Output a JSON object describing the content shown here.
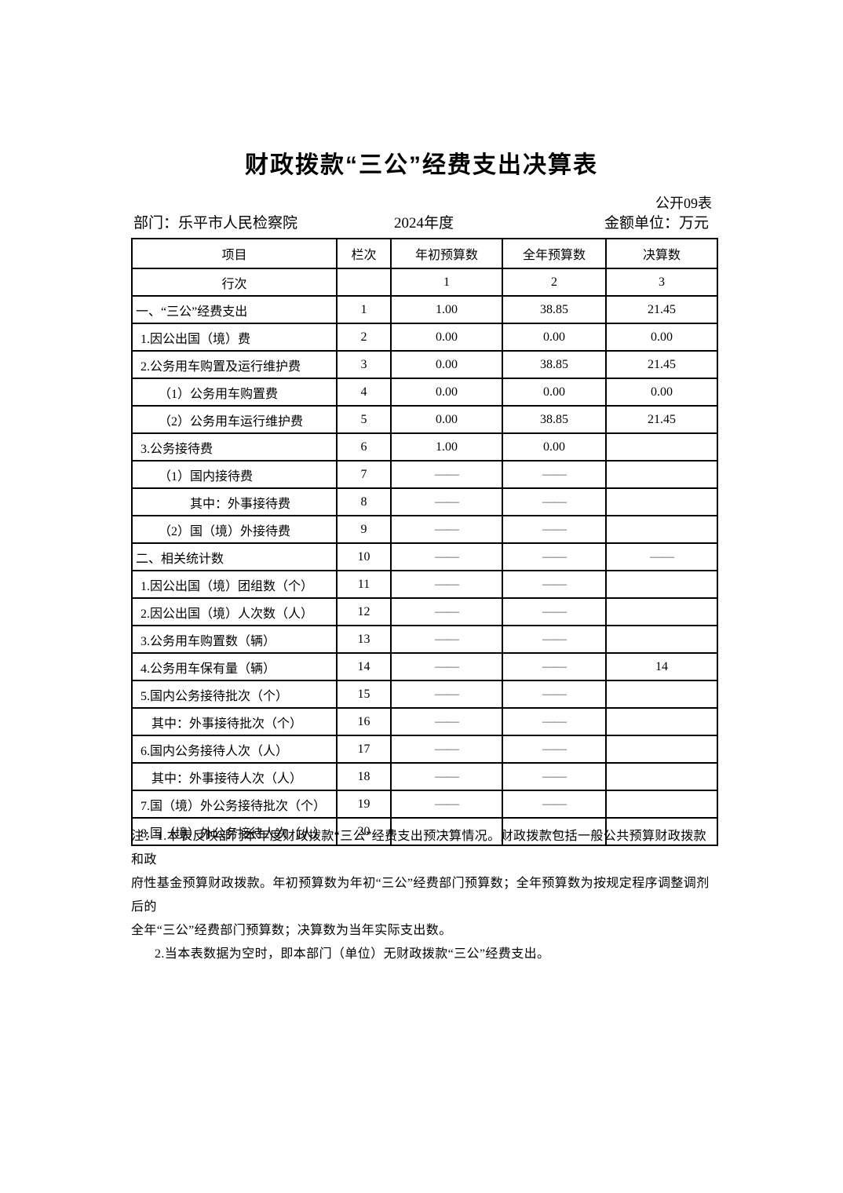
{
  "page": {
    "title": "财政拨款“三公”经费支出决算表",
    "form_code": "公开09表",
    "department": "部门：乐平市人民检察院",
    "year": "2024年度",
    "unit": "金额单位：万元"
  },
  "table": {
    "headers": [
      "项目",
      "栏次",
      "年初预算数",
      "全年预算数",
      "决算数"
    ],
    "subheader": {
      "label": "行次",
      "lan": "",
      "c1": "1",
      "c2": "2",
      "c3": "3"
    },
    "rows": [
      {
        "name": "一、“三公”经费支出",
        "indent": 0,
        "line": "1",
        "v1": "1.00",
        "v2": "38.85",
        "v3": "21.45"
      },
      {
        "name": "1.因公出国（境）费",
        "indent": 1,
        "line": "2",
        "v1": "0.00",
        "v2": "0.00",
        "v3": "0.00"
      },
      {
        "name": "2.公务用车购置及运行维护费",
        "indent": 1,
        "line": "3",
        "v1": "0.00",
        "v2": "38.85",
        "v3": "21.45"
      },
      {
        "name": "（1）公务用车购置费",
        "indent": 2,
        "line": "4",
        "v1": "0.00",
        "v2": "0.00",
        "v3": "0.00"
      },
      {
        "name": "（2）公务用车运行维护费",
        "indent": 2,
        "line": "5",
        "v1": "0.00",
        "v2": "38.85",
        "v3": "21.45"
      },
      {
        "name": "3.公务接待费",
        "indent": 1,
        "line": "6",
        "v1": "1.00",
        "v2": "0.00",
        "v3": ""
      },
      {
        "name": "（1）国内接待费",
        "indent": 2,
        "line": "7",
        "v1": "——",
        "v2": "——",
        "v3": ""
      },
      {
        "name": "其中：外事接待费",
        "indent": 3,
        "line": "8",
        "v1": "——",
        "v2": "——",
        "v3": ""
      },
      {
        "name": "（2）国（境）外接待费",
        "indent": 2,
        "line": "9",
        "v1": "——",
        "v2": "——",
        "v3": ""
      },
      {
        "name": "二、相关统计数",
        "indent": 0,
        "line": "10",
        "v1": "——",
        "v2": "——",
        "v3": "——"
      },
      {
        "name": "1.因公出国（境）团组数（个）",
        "indent": 1,
        "line": "11",
        "v1": "——",
        "v2": "——",
        "v3": ""
      },
      {
        "name": "2.因公出国（境）人次数（人）",
        "indent": 1,
        "line": "12",
        "v1": "——",
        "v2": "——",
        "v3": ""
      },
      {
        "name": "3.公务用车购置数（辆）",
        "indent": 1,
        "line": "13",
        "v1": "——",
        "v2": "——",
        "v3": ""
      },
      {
        "name": "4.公务用车保有量（辆）",
        "indent": 1,
        "line": "14",
        "v1": "——",
        "v2": "——",
        "v3": "14"
      },
      {
        "name": "5.国内公务接待批次（个）",
        "indent": 1,
        "line": "15",
        "v1": "——",
        "v2": "——",
        "v3": ""
      },
      {
        "name": "其中：外事接待批次（个）",
        "indent": 4,
        "line": "16",
        "v1": "——",
        "v2": "——",
        "v3": ""
      },
      {
        "name": "6.国内公务接待人次（人）",
        "indent": 1,
        "line": "17",
        "v1": "——",
        "v2": "——",
        "v3": ""
      },
      {
        "name": "其中：外事接待人次（人）",
        "indent": 4,
        "line": "18",
        "v1": "——",
        "v2": "——",
        "v3": ""
      },
      {
        "name": "7.国（境）外公务接待批次（个）",
        "indent": 1,
        "line": "19",
        "v1": "——",
        "v2": "——",
        "v3": ""
      },
      {
        "name": "8.国（境）外公务接待人次（人）",
        "indent": 1,
        "line": "20",
        "v1": "——",
        "v2": "——",
        "v3": ""
      }
    ]
  },
  "notes": {
    "lines": [
      "注：1.本表反映部门本年度财政拨款“三公”经费支出预决算情况。财政拨款包括一般公共预算财政拨款和政",
      "府性基金预算财政拨款。年初预算数为年初“三公”经费部门预算数；全年预算数为按规定程序调整调剂后的",
      "全年“三公”经费部门预算数；决算数为当年实际支出数。",
      "2.当本表数据为空时，即本部门（单位）无财政拨款“三公”经费支出。"
    ]
  }
}
